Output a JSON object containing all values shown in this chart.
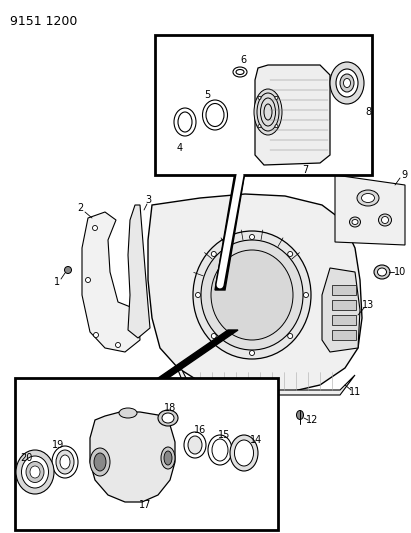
{
  "title": "9151 1200",
  "bg_color": "#ffffff",
  "line_color": "#000000",
  "title_fontsize": 9,
  "label_fontsize": 7,
  "figsize": [
    4.11,
    5.33
  ],
  "dpi": 100
}
